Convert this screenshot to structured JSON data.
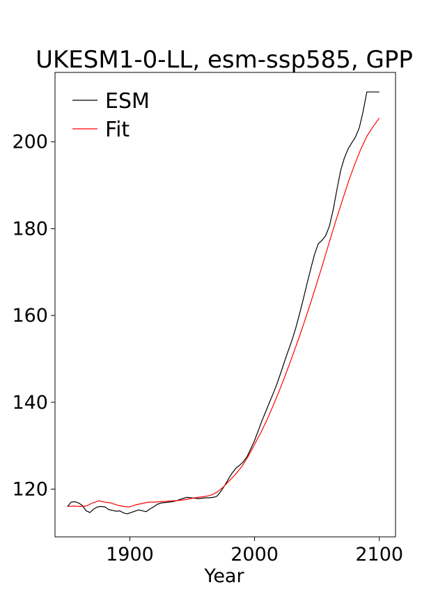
{
  "chart_data": {
    "type": "line",
    "title": "UKESM1-0-LL, esm-ssp585, GPP",
    "xlabel": "Year",
    "ylabel": "",
    "xlim": [
      1840,
      2113
    ],
    "ylim": [
      109,
      216
    ],
    "xticks": [
      1900,
      2000,
      2100
    ],
    "yticks": [
      120,
      140,
      160,
      180,
      200
    ],
    "grid": false,
    "legend_position": "top-left",
    "series": [
      {
        "name": "ESM",
        "color": "#000000",
        "x": [
          1850,
          1853,
          1856,
          1859,
          1862,
          1865,
          1868,
          1871,
          1874,
          1877,
          1880,
          1883,
          1886,
          1889,
          1892,
          1895,
          1898,
          1901,
          1904,
          1907,
          1910,
          1913,
          1916,
          1919,
          1922,
          1925,
          1928,
          1931,
          1934,
          1937,
          1940,
          1943,
          1946,
          1949,
          1952,
          1955,
          1958,
          1961,
          1964,
          1967,
          1970,
          1973,
          1976,
          1979,
          1982,
          1985,
          1988,
          1991,
          1994,
          1997,
          2000,
          2003,
          2006,
          2009,
          2012,
          2015,
          2018,
          2021,
          2024,
          2027,
          2030,
          2033,
          2036,
          2039,
          2042,
          2045,
          2048,
          2051,
          2054,
          2057,
          2060,
          2063,
          2066,
          2069,
          2072,
          2075,
          2078,
          2081,
          2084,
          2087,
          2090,
          2093,
          2096,
          2098,
          2100
        ],
        "y": [
          116.0,
          117.0,
          117.1,
          116.8,
          116.2,
          115.0,
          114.6,
          115.4,
          115.9,
          116.0,
          115.9,
          115.3,
          115.1,
          114.9,
          115.0,
          114.5,
          114.3,
          114.6,
          114.9,
          115.2,
          115.0,
          114.8,
          115.4,
          115.9,
          116.5,
          116.8,
          116.9,
          117.0,
          117.1,
          117.3,
          117.6,
          117.9,
          118.1,
          118.0,
          117.9,
          117.8,
          117.9,
          118.0,
          118.0,
          118.1,
          118.4,
          119.5,
          120.8,
          122.3,
          123.7,
          124.8,
          125.5,
          126.3,
          127.5,
          129.3,
          131.2,
          133.5,
          135.8,
          137.9,
          140.0,
          142.1,
          144.3,
          146.8,
          149.4,
          151.9,
          154.3,
          157.1,
          160.3,
          163.7,
          167.3,
          170.7,
          174.0,
          176.5,
          177.3,
          178.4,
          180.6,
          184.3,
          189.0,
          193.4,
          196.3,
          198.4,
          199.8,
          201.2,
          203.3,
          207.0,
          211.5,
          211.5,
          211.5,
          211.5,
          211.5
        ]
      },
      {
        "name": "Fit",
        "color": "#ff0000",
        "x": [
          1850,
          1855,
          1860,
          1865,
          1870,
          1875,
          1880,
          1885,
          1890,
          1895,
          1900,
          1905,
          1910,
          1915,
          1920,
          1925,
          1930,
          1935,
          1940,
          1945,
          1950,
          1955,
          1960,
          1965,
          1970,
          1975,
          1980,
          1985,
          1990,
          1995,
          2000,
          2005,
          2010,
          2015,
          2020,
          2025,
          2030,
          2035,
          2040,
          2045,
          2050,
          2055,
          2060,
          2065,
          2070,
          2075,
          2080,
          2085,
          2090,
          2095,
          2100
        ],
        "y": [
          116.0,
          116.1,
          116.0,
          116.1,
          116.8,
          117.3,
          117.0,
          116.8,
          116.3,
          116.0,
          115.9,
          116.4,
          116.7,
          117.0,
          117.0,
          117.1,
          117.2,
          117.3,
          117.4,
          117.6,
          117.9,
          118.1,
          118.3,
          118.6,
          119.3,
          120.5,
          122.0,
          123.5,
          125.3,
          127.6,
          130.3,
          133.0,
          136.0,
          139.3,
          142.8,
          146.5,
          150.4,
          154.4,
          158.6,
          163.0,
          167.5,
          172.2,
          177.0,
          181.7,
          186.2,
          190.6,
          194.6,
          198.2,
          201.3,
          203.5,
          205.5
        ]
      }
    ]
  }
}
